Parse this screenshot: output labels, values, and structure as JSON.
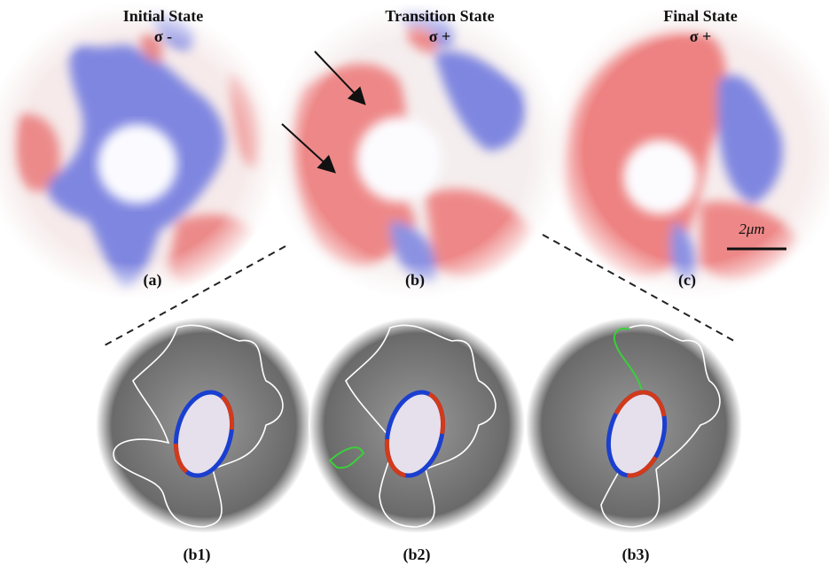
{
  "panels": [
    {
      "title": "Initial State",
      "polarization": "σ -",
      "label": "(a)"
    },
    {
      "title": "Transition State",
      "polarization": "σ +",
      "label": "(b)"
    },
    {
      "title": "Final State",
      "polarization": "σ +",
      "label": "(c)"
    }
  ],
  "scale_bar": "2μm",
  "zoom_panels": [
    {
      "label": "(b1)"
    },
    {
      "label": "(b2)"
    },
    {
      "label": "(b3)"
    }
  ]
}
